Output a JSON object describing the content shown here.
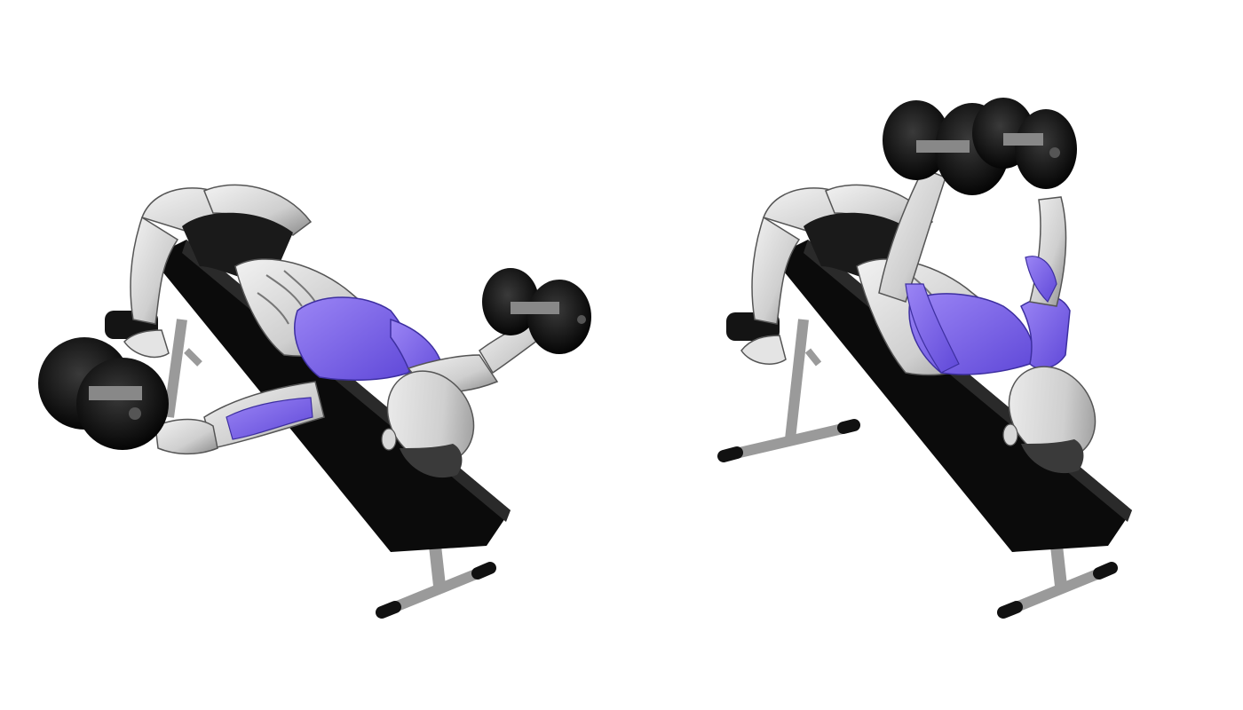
{
  "illustration": {
    "panels": [
      {
        "id": "start",
        "position": "arms-extended-out"
      },
      {
        "id": "end",
        "position": "arms-raised-together"
      }
    ]
  },
  "colors": {
    "background": "#ffffff",
    "bench": "#0e0e0e",
    "bench_frame": "#9a9a9a",
    "dumbbell": "#141414",
    "body": "#dcdcdc",
    "body_shadow": "#8c8c8c",
    "muscle_highlight": "#8a6ff0",
    "muscle_highlight_dark": "#5b45d6",
    "hair": "#3a3a3a",
    "shorts": "#1a1a1a"
  }
}
